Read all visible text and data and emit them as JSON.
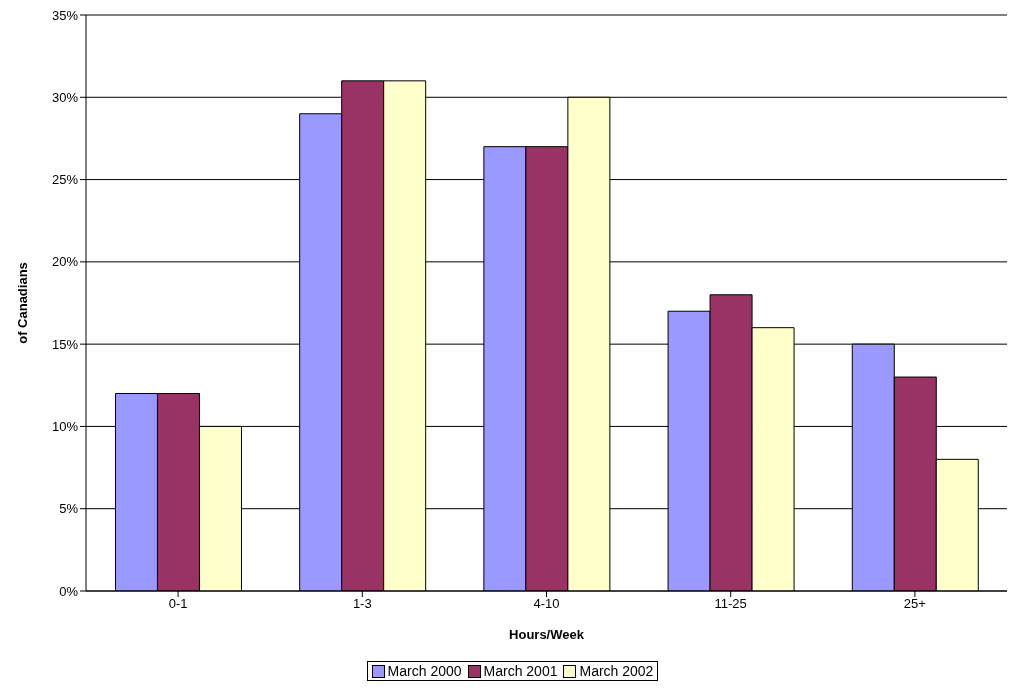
{
  "chart_data": {
    "type": "bar",
    "xlabel": "Hours/Week",
    "ylabel": "of Canadians",
    "categories": [
      "0-1",
      "1-3",
      "4-10",
      "11-25",
      "25+"
    ],
    "series": [
      {
        "name": "March 2000",
        "color": "#9999ff",
        "values": [
          12,
          29,
          27,
          17,
          15
        ]
      },
      {
        "name": "March 2001",
        "color": "#993366",
        "values": [
          12,
          31,
          27,
          18,
          13
        ]
      },
      {
        "name": "March 2002",
        "color": "#ffffcc",
        "values": [
          10,
          31,
          30,
          16,
          8
        ]
      }
    ],
    "ylim": [
      0,
      35
    ],
    "yticks": [
      {
        "value": 0,
        "label": "0%"
      },
      {
        "value": 5,
        "label": "5%"
      },
      {
        "value": 10,
        "label": "10%"
      },
      {
        "value": 15,
        "label": "15%"
      },
      {
        "value": 20,
        "label": "20%"
      },
      {
        "value": 25,
        "label": "25%"
      },
      {
        "value": 30,
        "label": "30%"
      },
      {
        "value": 35,
        "label": "35%"
      }
    ],
    "grid": "y",
    "legend": "bottom"
  }
}
